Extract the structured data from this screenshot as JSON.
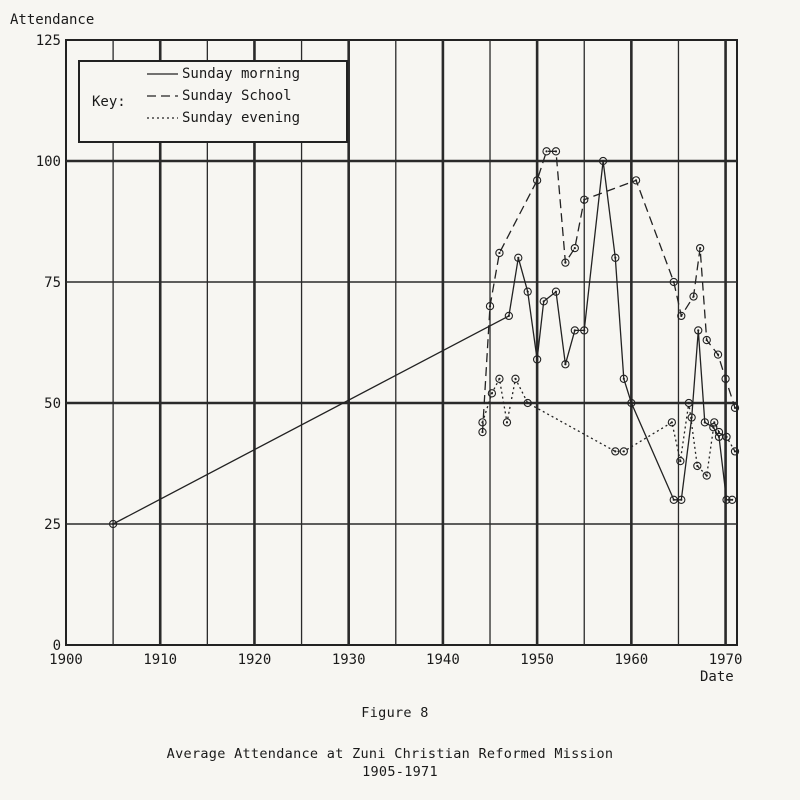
{
  "chart_data": {
    "type": "line",
    "ylabel": "Attendance",
    "xlabel": "Date",
    "xlim": [
      1900,
      1971
    ],
    "ylim": [
      0,
      125
    ],
    "x_ticks": [
      1900,
      1910,
      1920,
      1930,
      1940,
      1950,
      1960,
      1970
    ],
    "y_ticks": [
      0,
      25,
      50,
      75,
      100,
      125
    ],
    "grid": true,
    "legend": {
      "position": "top-left",
      "title": "Key:",
      "entries": [
        "Sunday morning",
        "Sunday School",
        "Sunday evening"
      ]
    },
    "series": [
      {
        "name": "Sunday morning",
        "style": "solid",
        "x": [
          1905,
          1947,
          1948,
          1949,
          1950,
          1950.7,
          1952,
          1953,
          1954,
          1955,
          1957,
          1958.3,
          1959.2,
          1960,
          1964.5,
          1965.3,
          1966.4,
          1967.1,
          1967.8,
          1968.7,
          1969.3,
          1970.1,
          1970.7
        ],
        "y": [
          25,
          68,
          80,
          73,
          59,
          71,
          73,
          58,
          65,
          65,
          100,
          80,
          55,
          50,
          30,
          30,
          47,
          65,
          46,
          45,
          43,
          30,
          30
        ]
      },
      {
        "name": "Sunday School",
        "style": "dashed",
        "x": [
          1944.2,
          1945,
          1946,
          1950,
          1951,
          1952,
          1953,
          1954,
          1955,
          1960.5,
          1964.5,
          1965.3,
          1966.6,
          1967.3,
          1968,
          1969.2,
          1970,
          1971
        ],
        "y": [
          44,
          70,
          81,
          96,
          102,
          102,
          79,
          82,
          92,
          96,
          75,
          68,
          72,
          82,
          63,
          60,
          55,
          49
        ]
      },
      {
        "name": "Sunday evening",
        "style": "dotted",
        "x": [
          1944.2,
          1945.2,
          1946,
          1946.8,
          1947.7,
          1949,
          1958.3,
          1959.2,
          1964.3,
          1965.2,
          1966.1,
          1967,
          1968,
          1968.8,
          1969.3,
          1970.1,
          1971
        ],
        "y": [
          46,
          52,
          55,
          46,
          55,
          50,
          40,
          40,
          46,
          38,
          50,
          37,
          35,
          46,
          44,
          43,
          40
        ]
      }
    ]
  },
  "figure_label": "Figure 8",
  "caption_line1": "Average Attendance at Zuni Christian Reformed Mission",
  "caption_line2": "1905-1971"
}
